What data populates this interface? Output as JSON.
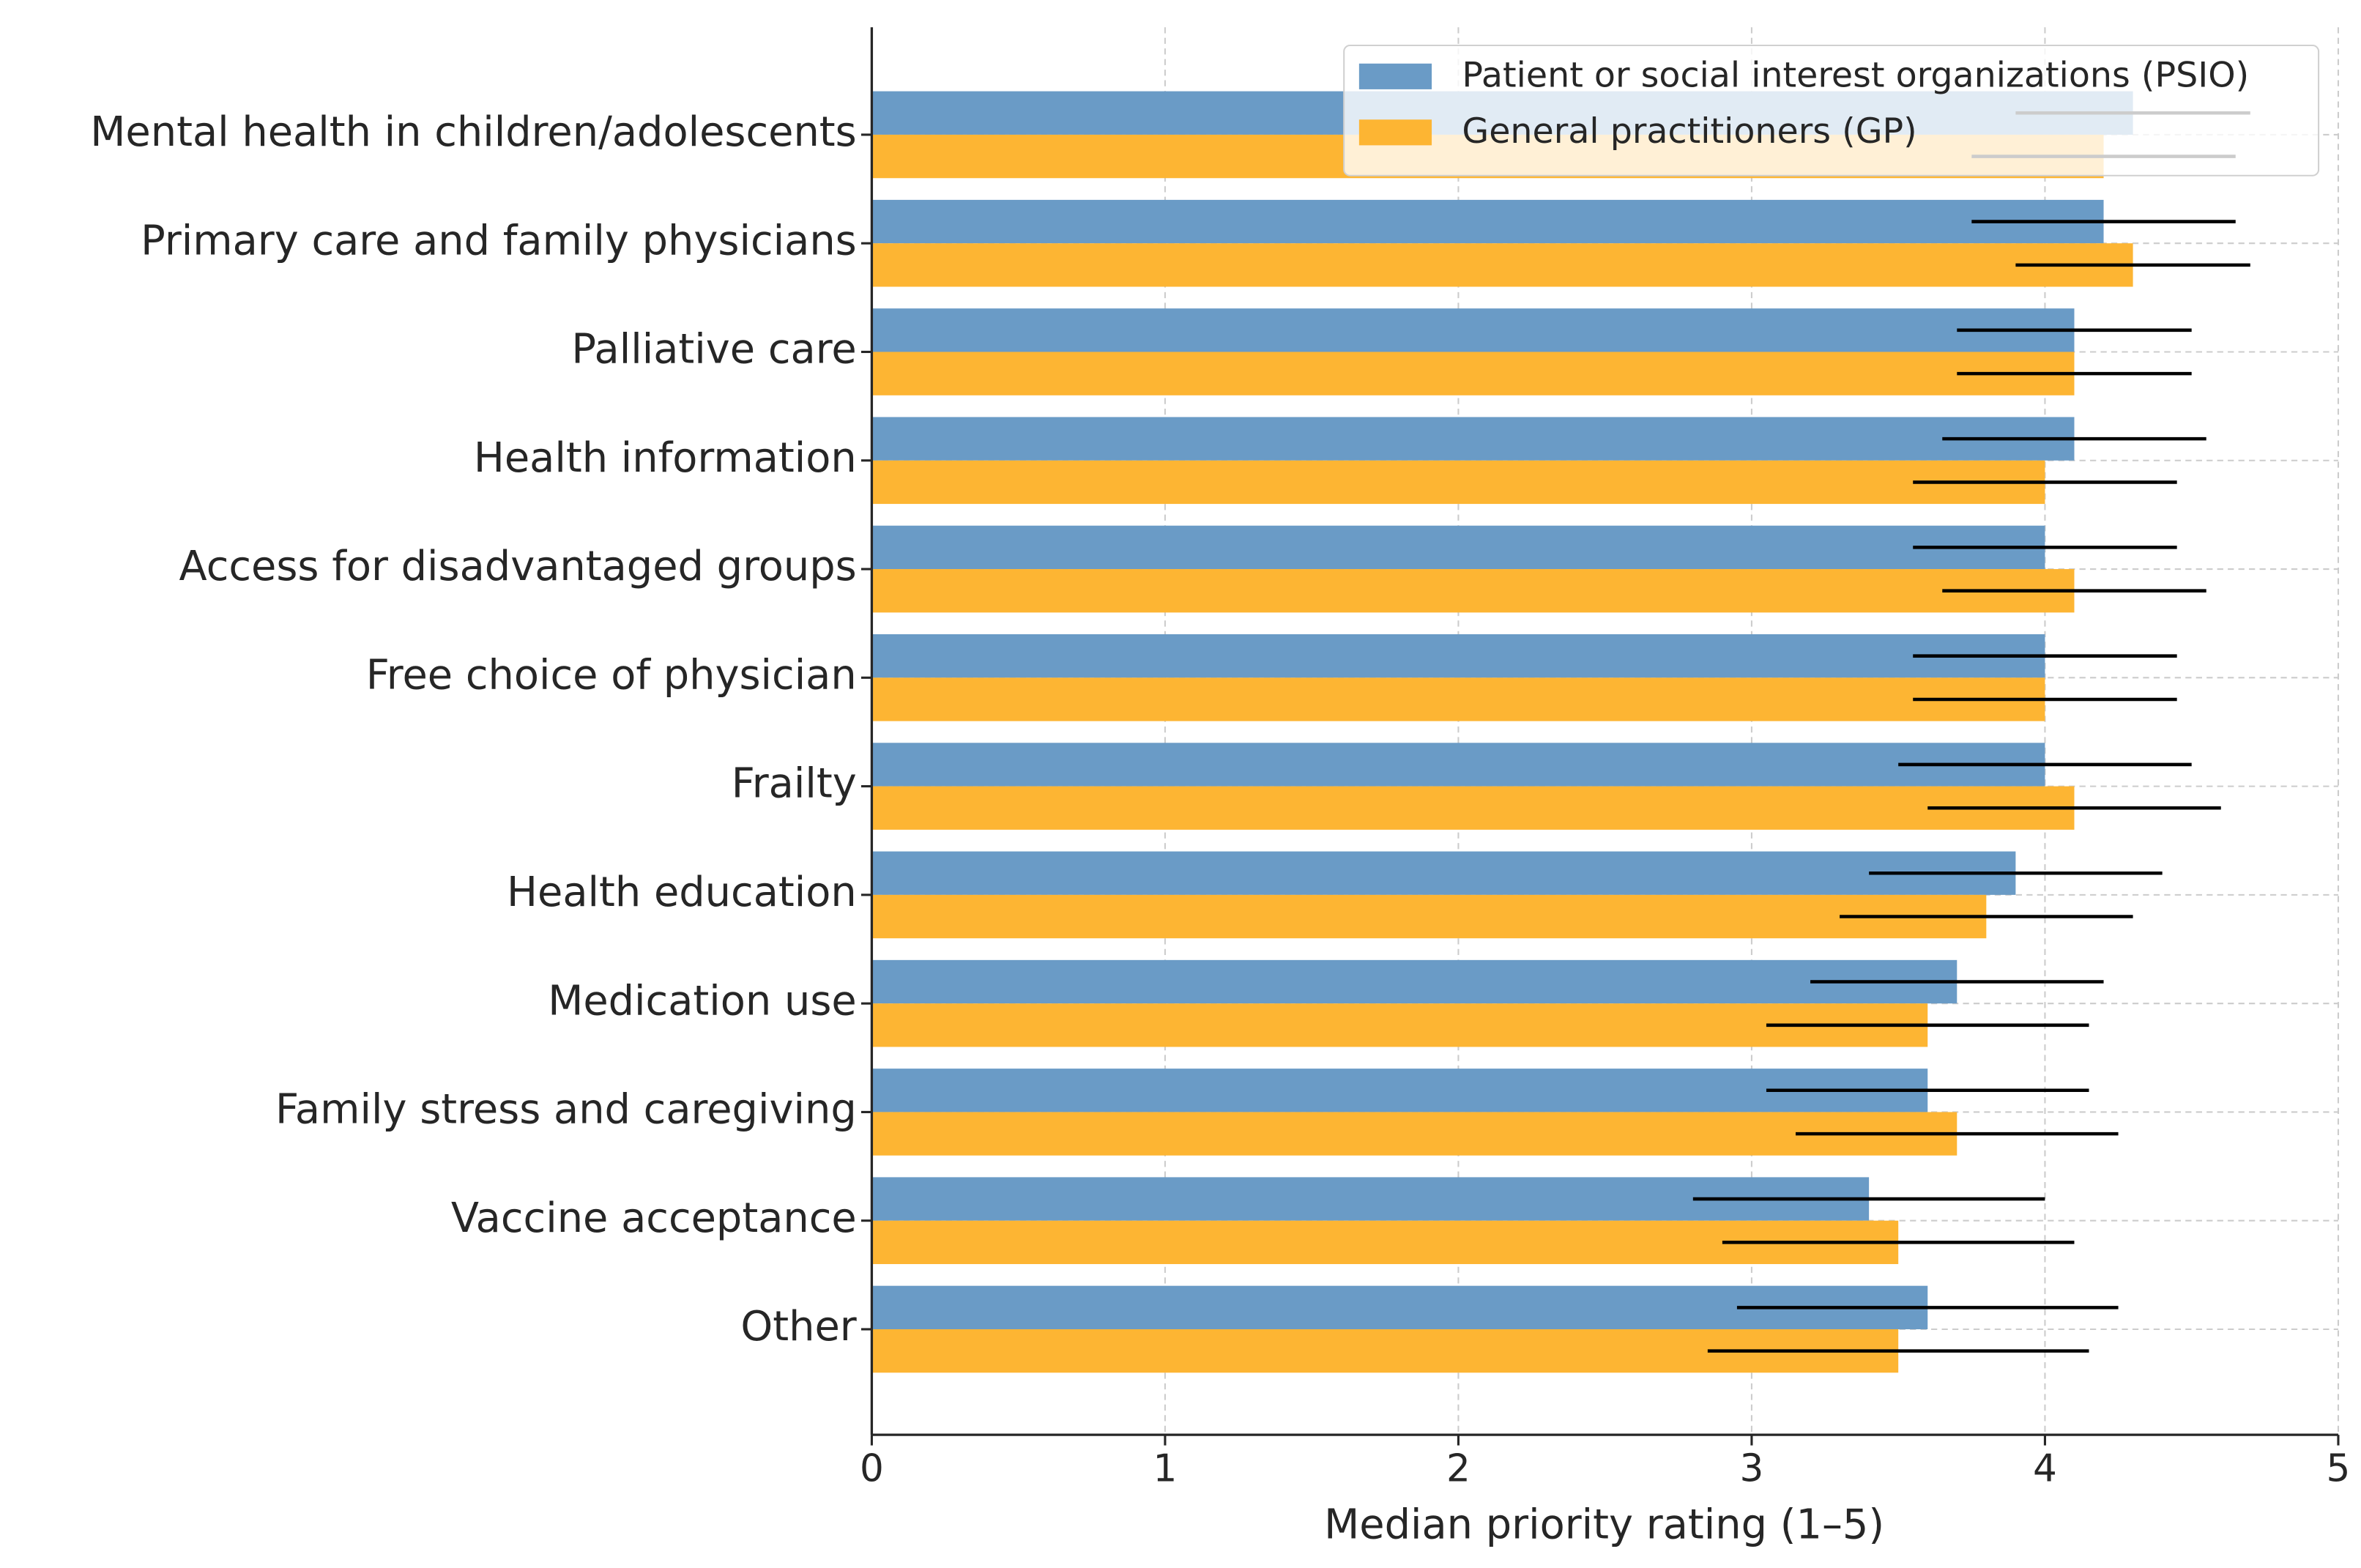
{
  "chart_data": {
    "type": "barh",
    "xlabel": "Median priority rating (1–5)",
    "categories": [
      "Mental health in children/adolescents",
      "Primary care and family physicians",
      "Palliative care",
      "Health information",
      "Access for disadvantaged groups",
      "Free choice of physician",
      "Frailty",
      "Health education",
      "Medication use",
      "Family stress and caregiving",
      "Vaccine acceptance",
      "Other"
    ],
    "series": [
      {
        "name": "Patient or social interest organizations (PSIO)",
        "color": "#6a9bc6",
        "values": [
          4.3,
          4.2,
          4.1,
          4.1,
          4.0,
          4.0,
          4.0,
          3.9,
          3.7,
          3.6,
          3.4,
          3.6
        ],
        "errors": [
          0.4,
          0.45,
          0.4,
          0.45,
          0.45,
          0.45,
          0.5,
          0.5,
          0.5,
          0.55,
          0.6,
          0.65
        ]
      },
      {
        "name": "General practitioners (GP)",
        "color": "#fdb533",
        "values": [
          4.2,
          4.3,
          4.1,
          4.0,
          4.1,
          4.0,
          4.1,
          3.8,
          3.6,
          3.7,
          3.5,
          3.5
        ],
        "errors": [
          0.45,
          0.4,
          0.4,
          0.45,
          0.45,
          0.45,
          0.5,
          0.5,
          0.55,
          0.55,
          0.6,
          0.65
        ]
      }
    ],
    "xlim": [
      0,
      5
    ],
    "xticks": [
      0,
      1,
      2,
      3,
      4,
      5
    ],
    "grid": true,
    "legend": "upper right"
  }
}
